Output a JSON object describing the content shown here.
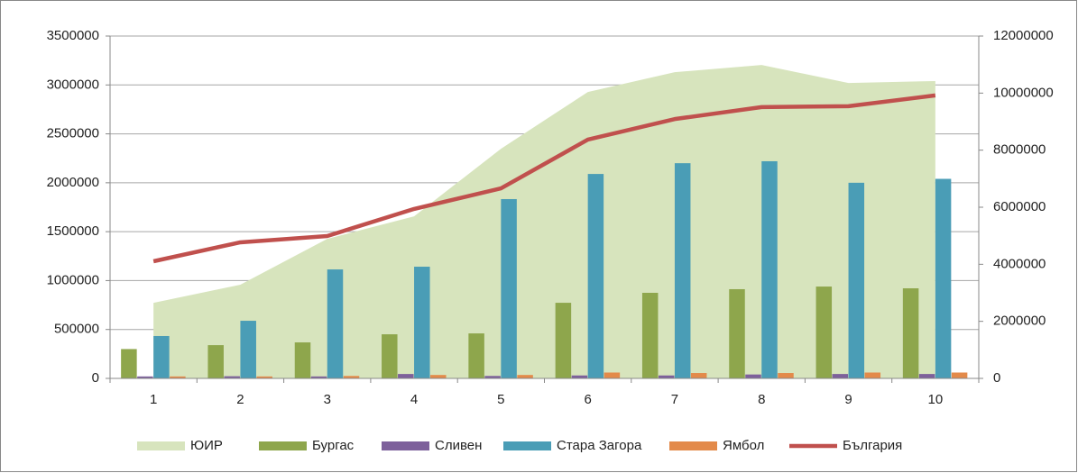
{
  "chart_data": {
    "type": "combo",
    "categories": [
      "1",
      "2",
      "3",
      "4",
      "5",
      "6",
      "7",
      "8",
      "9",
      "10"
    ],
    "ylim": [
      0,
      3500000
    ],
    "yticks": [
      0,
      500000,
      1000000,
      1500000,
      2000000,
      2500000,
      3000000,
      3500000
    ],
    "y2lim": [
      0,
      12000000
    ],
    "y2ticks": [
      0,
      2000000,
      4000000,
      6000000,
      8000000,
      10000000,
      12000000
    ],
    "grid": true,
    "legend": "bottom",
    "series": [
      {
        "name": "ЮИР",
        "type": "area",
        "color": "#d7e4bd",
        "values": [
          773000,
          958000,
          1427000,
          1657000,
          2348000,
          2928000,
          3130000,
          3204000,
          3020000,
          3040000
        ]
      },
      {
        "name": "Бургас",
        "type": "bar",
        "color": "#8ea64c",
        "values": [
          300000,
          340000,
          368000,
          451000,
          460000,
          773000,
          875000,
          912000,
          939000,
          921000
        ]
      },
      {
        "name": "Сливен",
        "type": "bar",
        "color": "#7d609b",
        "values": [
          20000,
          22000,
          20000,
          45000,
          25000,
          30000,
          30000,
          40000,
          45000,
          45000
        ]
      },
      {
        "name": "Стара Загора",
        "type": "bar",
        "color": "#4a9db6",
        "values": [
          433000,
          589000,
          1114000,
          1142000,
          1833000,
          2090000,
          2200000,
          2220000,
          2000000,
          2040000
        ]
      },
      {
        "name": "Ямбол",
        "type": "bar",
        "color": "#e38a4a",
        "values": [
          20000,
          20000,
          25000,
          35000,
          35000,
          60000,
          55000,
          55000,
          60000,
          60000
        ]
      },
      {
        "name": "България",
        "type": "line",
        "axis": "y2",
        "color": "#c0504d",
        "values": [
          4105000,
          4770000,
          4990000,
          5940000,
          6660000,
          8370000,
          9090000,
          9510000,
          9540000,
          9920000
        ]
      }
    ]
  }
}
